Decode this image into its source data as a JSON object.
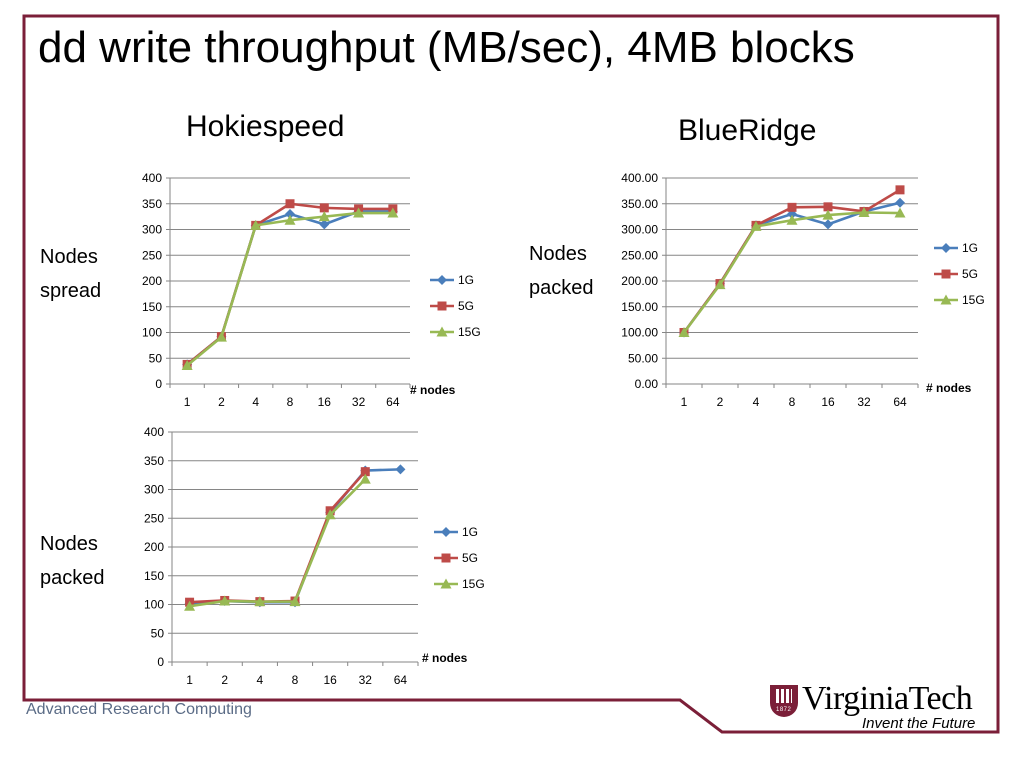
{
  "slide": {
    "title": "dd write throughput (MB/sec), 4MB blocks",
    "headings": {
      "left": "Hokiespeed",
      "right": "BlueRidge"
    },
    "row_labels": {
      "top_left": [
        "Nodes",
        "spread"
      ],
      "top_right": [
        "Nodes",
        "packed"
      ],
      "bottom_left": [
        "Nodes",
        "packed"
      ]
    },
    "footer": "Advanced Research Computing",
    "logo": {
      "name": "VirginiaTech",
      "tagline": "Invent the Future",
      "year": "1872"
    },
    "colors": {
      "frame": "#7b1f38",
      "series_1G": "#4a7ebb",
      "series_5G": "#be4b48",
      "series_15G": "#98b954"
    }
  },
  "chart_data": [
    {
      "id": "hokie_spread",
      "type": "line",
      "categories": [
        "1",
        "2",
        "4",
        "8",
        "16",
        "32",
        "64"
      ],
      "xlabel": "# nodes",
      "ylim": [
        0,
        400
      ],
      "yticks": [
        "0",
        "50",
        "100",
        "150",
        "200",
        "250",
        "300",
        "350",
        "400"
      ],
      "legend": "right",
      "grid": true,
      "series": [
        {
          "name": "1G",
          "color": "#4a7ebb",
          "marker": "diamond",
          "values": [
            38,
            92,
            308,
            330,
            310,
            335,
            335
          ]
        },
        {
          "name": "5G",
          "color": "#be4b48",
          "marker": "square",
          "values": [
            38,
            92,
            308,
            350,
            342,
            340,
            340
          ]
        },
        {
          "name": "15G",
          "color": "#98b954",
          "marker": "triangle",
          "values": [
            36,
            91,
            308,
            318,
            325,
            332,
            332
          ]
        }
      ]
    },
    {
      "id": "blueridge_packed",
      "type": "line",
      "categories": [
        "1",
        "2",
        "4",
        "8",
        "16",
        "32",
        "64"
      ],
      "xlabel": "# nodes",
      "ylim": [
        0,
        400
      ],
      "yticks": [
        "0.00",
        "50.00",
        "100.00",
        "150.00",
        "200.00",
        "250.00",
        "300.00",
        "350.00",
        "400.00"
      ],
      "legend": "right",
      "grid": true,
      "series": [
        {
          "name": "1G",
          "color": "#4a7ebb",
          "marker": "diamond",
          "values": [
            100,
            195,
            308,
            330,
            310,
            335,
            352
          ]
        },
        {
          "name": "5G",
          "color": "#be4b48",
          "marker": "square",
          "values": [
            100,
            195,
            308,
            343,
            344,
            335,
            377
          ]
        },
        {
          "name": "15G",
          "color": "#98b954",
          "marker": "triangle",
          "values": [
            100,
            193,
            306,
            318,
            328,
            333,
            332
          ]
        }
      ]
    },
    {
      "id": "hokie_packed",
      "type": "line",
      "categories": [
        "1",
        "2",
        "4",
        "8",
        "16",
        "32",
        "64"
      ],
      "xlabel": "# nodes",
      "ylim": [
        0,
        400
      ],
      "yticks": [
        "0",
        "50",
        "100",
        "150",
        "200",
        "250",
        "300",
        "350",
        "400"
      ],
      "legend": "right",
      "grid": true,
      "series": [
        {
          "name": "1G",
          "color": "#4a7ebb",
          "marker": "diamond",
          "values": [
            101,
            106,
            104,
            104,
            260,
            333,
            335
          ]
        },
        {
          "name": "5G",
          "color": "#be4b48",
          "marker": "square",
          "values": [
            104,
            107,
            105,
            106,
            263,
            331,
            null
          ]
        },
        {
          "name": "15G",
          "color": "#98b954",
          "marker": "triangle",
          "values": [
            97,
            106,
            105,
            105,
            256,
            318,
            null
          ]
        }
      ]
    }
  ]
}
